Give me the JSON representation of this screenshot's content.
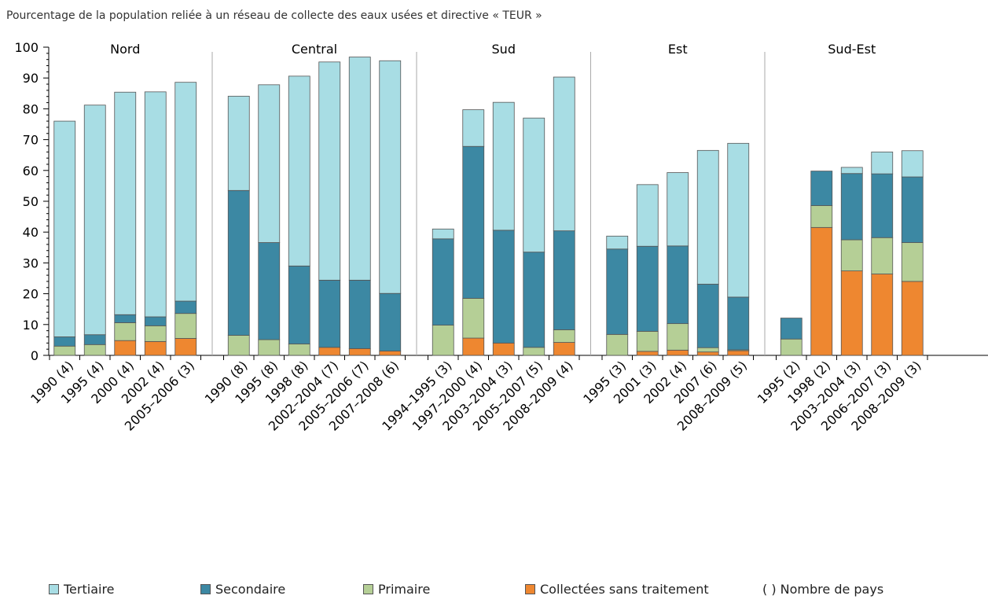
{
  "title": "Pourcentage de la population reliée à un réseau de collecte des eaux usées et directive « TEUR »",
  "legend_note": "( ) Nombre de pays",
  "chart_data": {
    "type": "bar",
    "stacked": true,
    "ylim": [
      0,
      100
    ],
    "yticks": [
      0,
      10,
      20,
      30,
      40,
      50,
      60,
      70,
      80,
      90,
      100
    ],
    "series": [
      {
        "name": "Tertiaire",
        "color": "#a8dde4"
      },
      {
        "name": "Secondaire",
        "color": "#3c88a3"
      },
      {
        "name": "Primaire",
        "color": "#b5cf96"
      },
      {
        "name": "Collectées sans traitement",
        "color": "#ee8730"
      }
    ],
    "groups": [
      {
        "name": "Nord",
        "bars": [
          {
            "label": "1990 (4)",
            "values": {
              "Collectées sans traitement": 0,
              "Primaire": 3,
              "Secondaire": 3,
              "Tertiaire": 70
            }
          },
          {
            "label": "1995 (4)",
            "values": {
              "Collectées sans traitement": 0,
              "Primaire": 3.5,
              "Secondaire": 3.2,
              "Tertiaire": 74.5
            }
          },
          {
            "label": "2000 (4)",
            "values": {
              "Collectées sans traitement": 4.8,
              "Primaire": 5.8,
              "Secondaire": 2.6,
              "Tertiaire": 72.2
            }
          },
          {
            "label": "2002 (4)",
            "values": {
              "Collectées sans traitement": 4.5,
              "Primaire": 5.1,
              "Secondaire": 2.9,
              "Tertiaire": 73
            }
          },
          {
            "label": "2005–2006 (3)",
            "values": {
              "Collectées sans traitement": 5.5,
              "Primaire": 8.1,
              "Secondaire": 4,
              "Tertiaire": 71
            }
          }
        ]
      },
      {
        "name": "Central",
        "bars": [
          {
            "label": "1990 (8)",
            "values": {
              "Collectées sans traitement": 0,
              "Primaire": 6.5,
              "Secondaire": 47,
              "Tertiaire": 30.6
            }
          },
          {
            "label": "1995 (8)",
            "values": {
              "Collectées sans traitement": 0,
              "Primaire": 5.1,
              "Secondaire": 31.5,
              "Tertiaire": 51.2
            }
          },
          {
            "label": "1998 (8)",
            "values": {
              "Collectées sans traitement": 0,
              "Primaire": 3.7,
              "Secondaire": 25.3,
              "Tertiaire": 61.6
            }
          },
          {
            "label": "2002–2004 (7)",
            "values": {
              "Collectées sans traitement": 2.6,
              "Primaire": 0,
              "Secondaire": 21.8,
              "Tertiaire": 70.8
            }
          },
          {
            "label": "2005–2006 (7)",
            "values": {
              "Collectées sans traitement": 2.2,
              "Primaire": 0,
              "Secondaire": 22.2,
              "Tertiaire": 72.4
            }
          },
          {
            "label": "2007–2008 (6)",
            "values": {
              "Collectées sans traitement": 1.4,
              "Primaire": 0,
              "Secondaire": 18.7,
              "Tertiaire": 75.5
            }
          }
        ]
      },
      {
        "name": "Sud",
        "bars": [
          {
            "label": "1994–1995 (3)",
            "values": {
              "Collectées sans traitement": 0,
              "Primaire": 9.8,
              "Secondaire": 28,
              "Tertiaire": 3.2
            }
          },
          {
            "label": "1997–2000 (4)",
            "values": {
              "Collectées sans traitement": 5.6,
              "Primaire": 12.9,
              "Secondaire": 49.3,
              "Tertiaire": 11.9
            }
          },
          {
            "label": "2003–2004 (3)",
            "values": {
              "Collectées sans traitement": 4,
              "Primaire": 0,
              "Secondaire": 36.6,
              "Tertiaire": 41.5
            }
          },
          {
            "label": "2005–2007 (5)",
            "values": {
              "Collectées sans traitement": 0,
              "Primaire": 2.6,
              "Secondaire": 30.9,
              "Tertiaire": 43.5
            }
          },
          {
            "label": "2008–2009 (4)",
            "values": {
              "Collectées sans traitement": 4.2,
              "Primaire": 4.1,
              "Secondaire": 32.1,
              "Tertiaire": 49.9
            }
          }
        ]
      },
      {
        "name": "Est",
        "bars": [
          {
            "label": "1995 (3)",
            "values": {
              "Collectées sans traitement": 0,
              "Primaire": 6.8,
              "Secondaire": 27.7,
              "Tertiaire": 4.2
            }
          },
          {
            "label": "2001 (3)",
            "values": {
              "Collectées sans traitement": 1.3,
              "Primaire": 6.5,
              "Secondaire": 27.6,
              "Tertiaire": 20
            }
          },
          {
            "label": "2002 (4)",
            "values": {
              "Collectées sans traitement": 1.7,
              "Primaire": 8.6,
              "Secondaire": 25.2,
              "Tertiaire": 23.8
            }
          },
          {
            "label": "2007 (6)",
            "values": {
              "Collectées sans traitement": 1.1,
              "Primaire": 1.4,
              "Secondaire": 20.6,
              "Tertiaire": 43.4
            }
          },
          {
            "label": "2008–2009 (5)",
            "values": {
              "Collectées sans traitement": 1.5,
              "Primaire": 0.3,
              "Secondaire": 17.1,
              "Tertiaire": 49.9
            }
          }
        ]
      },
      {
        "name": "Sud-Est",
        "bars": [
          {
            "label": "1995 (2)",
            "values": {
              "Collectées sans traitement": 0,
              "Primaire": 5.3,
              "Secondaire": 6.8,
              "Tertiaire": 0
            }
          },
          {
            "label": "1998 (2)",
            "values": {
              "Collectées sans traitement": 41.5,
              "Primaire": 7.1,
              "Secondaire": 11.2,
              "Tertiaire": 0
            }
          },
          {
            "label": "2003–2004 (3)",
            "values": {
              "Collectées sans traitement": 27.4,
              "Primaire": 10.1,
              "Secondaire": 21.5,
              "Tertiaire": 2
            }
          },
          {
            "label": "2006–2007 (3)",
            "values": {
              "Collectées sans traitement": 26.4,
              "Primaire": 11.8,
              "Secondaire": 20.7,
              "Tertiaire": 7.1
            }
          },
          {
            "label": "2008–2009 (3)",
            "values": {
              "Collectées sans traitement": 24,
              "Primaire": 12.6,
              "Secondaire": 21.3,
              "Tertiaire": 8.5
            }
          }
        ]
      }
    ]
  }
}
